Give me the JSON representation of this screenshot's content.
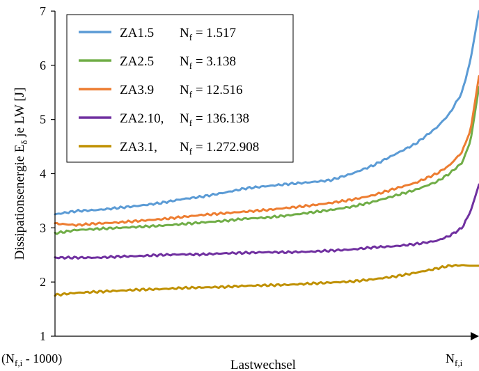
{
  "chart_data": {
    "type": "line",
    "xlabel": "Lastwechsel",
    "ylabel": "Dissipationsenergie E",
    "ylabel_sub": "δ",
    "ylabel_suffix": " je LW [J]",
    "ylim": [
      1,
      7
    ],
    "yticks": [
      "1",
      "2",
      "3",
      "4",
      "5",
      "6",
      "7"
    ],
    "xlim": [
      0,
      1
    ],
    "xtick_left": {
      "main": "(N",
      "sub": "f,i",
      "suffix": " - 1000)"
    },
    "xtick_right": {
      "main": "N",
      "sub": "f,i",
      "suffix": ""
    },
    "grid": false,
    "legend_position": "top-left",
    "x": [
      0,
      0.05,
      0.1,
      0.15,
      0.2,
      0.25,
      0.3,
      0.35,
      0.4,
      0.45,
      0.5,
      0.55,
      0.6,
      0.65,
      0.7,
      0.75,
      0.8,
      0.85,
      0.9,
      0.93,
      0.96,
      0.98,
      1.0
    ],
    "series": [
      {
        "name": "ZA1.5",
        "nf_label": "N",
        "nf_sub": "f",
        "nf_value": " = 1.517",
        "color": "#5B9BD5",
        "values": [
          3.25,
          3.31,
          3.33,
          3.37,
          3.41,
          3.46,
          3.53,
          3.58,
          3.65,
          3.73,
          3.77,
          3.81,
          3.84,
          3.88,
          4.0,
          4.15,
          4.35,
          4.55,
          4.85,
          5.1,
          5.5,
          6.1,
          7.0
        ]
      },
      {
        "name": "ZA2.5",
        "nf_label": "N",
        "nf_sub": "f",
        "nf_value": " = 3.138",
        "color": "#70AD47",
        "values": [
          2.9,
          2.96,
          2.98,
          3.0,
          3.02,
          3.04,
          3.07,
          3.1,
          3.13,
          3.17,
          3.19,
          3.23,
          3.28,
          3.33,
          3.39,
          3.48,
          3.59,
          3.7,
          3.85,
          4.0,
          4.2,
          4.6,
          5.6
        ]
      },
      {
        "name": "ZA3.9",
        "nf_label": "N",
        "nf_sub": "f",
        "nf_value": " = 12.516",
        "color": "#ED7D31",
        "values": [
          3.08,
          3.05,
          3.08,
          3.1,
          3.13,
          3.16,
          3.2,
          3.24,
          3.27,
          3.3,
          3.33,
          3.37,
          3.41,
          3.46,
          3.52,
          3.6,
          3.72,
          3.83,
          4.0,
          4.15,
          4.4,
          4.8,
          5.8
        ]
      },
      {
        "name": "ZA2.10,",
        "nf_label": "N",
        "nf_sub": "f",
        "nf_value": " = 136.138",
        "color": "#7030A0",
        "values": [
          2.45,
          2.45,
          2.45,
          2.47,
          2.48,
          2.5,
          2.51,
          2.51,
          2.53,
          2.54,
          2.55,
          2.55,
          2.56,
          2.58,
          2.6,
          2.64,
          2.66,
          2.7,
          2.76,
          2.85,
          3.0,
          3.3,
          3.8
        ]
      },
      {
        "name": "ZA3.1,",
        "nf_label": "N",
        "nf_sub": "f",
        "nf_value": " = 1.272.908",
        "color": "#BF9000",
        "values": [
          1.76,
          1.8,
          1.82,
          1.84,
          1.86,
          1.87,
          1.89,
          1.9,
          1.91,
          1.93,
          1.94,
          1.95,
          1.97,
          1.99,
          2.01,
          2.05,
          2.1,
          2.17,
          2.25,
          2.3,
          2.31,
          2.3,
          2.3
        ]
      }
    ]
  }
}
